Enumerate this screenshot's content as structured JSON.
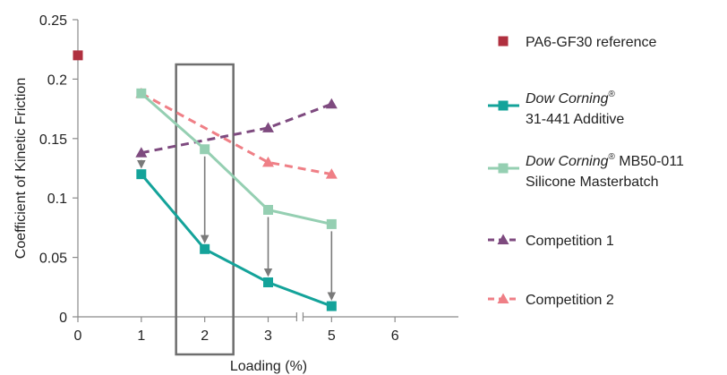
{
  "chart_data": {
    "type": "line",
    "title": "",
    "xlabel": "Loading (%)",
    "ylabel": "Coefficient of Kinetic Friction",
    "xlim": [
      0,
      6
    ],
    "ylim": [
      0,
      0.25
    ],
    "x_ticks": [
      0,
      1,
      2,
      3,
      5,
      6
    ],
    "x_tick_labels": [
      "0",
      "1",
      "2",
      "3",
      "5",
      "6"
    ],
    "y_ticks": [
      0,
      0.05,
      0.1,
      0.15,
      0.2,
      0.25
    ],
    "y_tick_labels": [
      "0",
      "0.05",
      "0.1",
      "0.15",
      "0.2",
      "0.25"
    ],
    "axis_break": "between 3 and 5",
    "grid": false,
    "legend_position": "right",
    "series": [
      {
        "name": "PA6-GF30 reference",
        "marker": "square",
        "line": "none",
        "color": "#b0303f",
        "x": [
          0
        ],
        "y": [
          0.22
        ]
      },
      {
        "name_italic": "Dow Corning",
        "name_sup": "®",
        "name_line2": "31-441 Additive",
        "marker": "square",
        "line": "solid",
        "color": "#14a39a",
        "x": [
          1,
          2,
          3,
          5
        ],
        "y": [
          0.12,
          0.057,
          0.029,
          0.009
        ]
      },
      {
        "name_italic": "Dow Corning",
        "name_sup": "®",
        "name_rest": " MB50-011",
        "name_line2": "Silicone Masterbatch",
        "marker": "square",
        "line": "solid",
        "color": "#95cfb2",
        "x": [
          1,
          2,
          3,
          5
        ],
        "y": [
          0.188,
          0.141,
          0.09,
          0.078
        ]
      },
      {
        "name": "Competition 1",
        "marker": "triangle",
        "line": "dashed",
        "color": "#7e4a7f",
        "x": [
          1,
          3,
          5
        ],
        "y": [
          0.138,
          0.159,
          0.179
        ]
      },
      {
        "name": "Competition 2",
        "marker": "triangle",
        "line": "dashed",
        "color": "#ef7f86",
        "x": [
          1,
          3,
          5
        ],
        "y": [
          0.188,
          0.13,
          0.12
        ]
      }
    ],
    "annotations": {
      "highlight_box_x": 2,
      "arrow_x": [
        1,
        2,
        3,
        5
      ],
      "arrow_color": "#7a7a7a"
    }
  }
}
